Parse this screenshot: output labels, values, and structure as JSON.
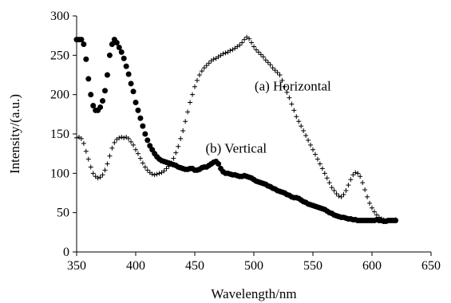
{
  "chart_data": {
    "type": "scatter",
    "xlabel": "Wavelength/nm",
    "ylabel": "Intensity/(a.u.)",
    "xlim": [
      350,
      650
    ],
    "ylim": [
      0,
      300
    ],
    "x_ticks": [
      "350",
      "400",
      "450",
      "500",
      "550",
      "600",
      "650"
    ],
    "y_ticks": [
      "0",
      "50",
      "100",
      "150",
      "200",
      "250",
      "300"
    ],
    "grid": false,
    "legend": "none",
    "annotations": [
      {
        "text": "(a) Horizontal",
        "x": 533,
        "y": 205
      },
      {
        "text": "(b) Vertical",
        "x": 485,
        "y": 126
      }
    ],
    "series": [
      {
        "name": "(a) Horizontal",
        "marker": "plus",
        "color": "#000000",
        "points": [
          [
            350,
            145
          ],
          [
            352,
            146
          ],
          [
            354,
            144
          ],
          [
            356,
            138
          ],
          [
            358,
            128
          ],
          [
            360,
            118
          ],
          [
            362,
            108
          ],
          [
            364,
            100
          ],
          [
            366,
            96
          ],
          [
            368,
            94
          ],
          [
            370,
            95
          ],
          [
            372,
            98
          ],
          [
            374,
            104
          ],
          [
            376,
            112
          ],
          [
            378,
            122
          ],
          [
            380,
            132
          ],
          [
            382,
            139
          ],
          [
            384,
            143
          ],
          [
            386,
            145
          ],
          [
            388,
            146
          ],
          [
            390,
            145
          ],
          [
            392,
            146
          ],
          [
            394,
            144
          ],
          [
            396,
            140
          ],
          [
            398,
            136
          ],
          [
            400,
            130
          ],
          [
            402,
            125
          ],
          [
            404,
            119
          ],
          [
            406,
            113
          ],
          [
            408,
            108
          ],
          [
            410,
            104
          ],
          [
            412,
            101
          ],
          [
            414,
            99
          ],
          [
            416,
            98
          ],
          [
            418,
            99
          ],
          [
            420,
            100
          ],
          [
            422,
            101
          ],
          [
            424,
            103
          ],
          [
            426,
            106
          ],
          [
            428,
            109
          ],
          [
            430,
            113
          ],
          [
            432,
            119
          ],
          [
            434,
            126
          ],
          [
            436,
            134
          ],
          [
            438,
            144
          ],
          [
            440,
            154
          ],
          [
            442,
            166
          ],
          [
            444,
            178
          ],
          [
            446,
            190
          ],
          [
            448,
            200
          ],
          [
            450,
            210
          ],
          [
            452,
            218
          ],
          [
            454,
            225
          ],
          [
            456,
            230
          ],
          [
            458,
            234
          ],
          [
            460,
            237
          ],
          [
            462,
            240
          ],
          [
            464,
            243
          ],
          [
            466,
            245
          ],
          [
            468,
            246
          ],
          [
            470,
            248
          ],
          [
            472,
            250
          ],
          [
            474,
            252
          ],
          [
            476,
            253
          ],
          [
            478,
            254
          ],
          [
            480,
            256
          ],
          [
            482,
            257
          ],
          [
            484,
            259
          ],
          [
            486,
            261
          ],
          [
            488,
            263
          ],
          [
            490,
            266
          ],
          [
            492,
            270
          ],
          [
            494,
            273
          ],
          [
            496,
            271
          ],
          [
            498,
            266
          ],
          [
            500,
            261
          ],
          [
            502,
            257
          ],
          [
            504,
            254
          ],
          [
            506,
            251
          ],
          [
            508,
            248
          ],
          [
            510,
            244
          ],
          [
            512,
            241
          ],
          [
            514,
            238
          ],
          [
            516,
            234
          ],
          [
            518,
            231
          ],
          [
            520,
            228
          ],
          [
            522,
            225
          ],
          [
            524,
            218
          ],
          [
            526,
            210
          ],
          [
            528,
            203
          ],
          [
            530,
            196
          ],
          [
            532,
            188
          ],
          [
            534,
            180
          ],
          [
            536,
            172
          ],
          [
            538,
            166
          ],
          [
            540,
            160
          ],
          [
            542,
            154
          ],
          [
            544,
            148
          ],
          [
            546,
            142
          ],
          [
            548,
            136
          ],
          [
            550,
            130
          ],
          [
            552,
            124
          ],
          [
            554,
            118
          ],
          [
            556,
            112
          ],
          [
            558,
            106
          ],
          [
            560,
            100
          ],
          [
            562,
            94
          ],
          [
            564,
            88
          ],
          [
            566,
            82
          ],
          [
            568,
            78
          ],
          [
            570,
            74
          ],
          [
            572,
            71
          ],
          [
            574,
            70
          ],
          [
            576,
            73
          ],
          [
            578,
            78
          ],
          [
            580,
            85
          ],
          [
            582,
            92
          ],
          [
            584,
            98
          ],
          [
            586,
            101
          ],
          [
            588,
            100
          ],
          [
            590,
            96
          ],
          [
            592,
            88
          ],
          [
            594,
            79
          ],
          [
            596,
            70
          ],
          [
            598,
            62
          ],
          [
            600,
            56
          ],
          [
            602,
            51
          ],
          [
            604,
            47
          ],
          [
            606,
            44
          ],
          [
            608,
            42
          ],
          [
            610,
            41
          ],
          [
            612,
            40
          ],
          [
            614,
            40
          ],
          [
            616,
            40
          ],
          [
            618,
            40
          ],
          [
            620,
            41
          ]
        ]
      },
      {
        "name": "(b) Vertical",
        "marker": "dot",
        "color": "#000000",
        "points": [
          [
            350,
            270
          ],
          [
            352,
            270
          ],
          [
            354,
            270
          ],
          [
            356,
            264
          ],
          [
            358,
            245
          ],
          [
            360,
            220
          ],
          [
            362,
            200
          ],
          [
            364,
            186
          ],
          [
            366,
            180
          ],
          [
            368,
            180
          ],
          [
            370,
            184
          ],
          [
            372,
            192
          ],
          [
            374,
            205
          ],
          [
            376,
            225
          ],
          [
            378,
            250
          ],
          [
            380,
            264
          ],
          [
            382,
            270
          ],
          [
            384,
            266
          ],
          [
            386,
            260
          ],
          [
            388,
            254
          ],
          [
            390,
            246
          ],
          [
            392,
            236
          ],
          [
            394,
            226
          ],
          [
            396,
            214
          ],
          [
            398,
            204
          ],
          [
            400,
            190
          ],
          [
            402,
            180
          ],
          [
            404,
            170
          ],
          [
            406,
            160
          ],
          [
            408,
            150
          ],
          [
            410,
            142
          ],
          [
            412,
            135
          ],
          [
            414,
            130
          ],
          [
            416,
            125
          ],
          [
            418,
            121
          ],
          [
            420,
            118
          ],
          [
            422,
            116
          ],
          [
            424,
            115
          ],
          [
            426,
            114
          ],
          [
            428,
            113
          ],
          [
            430,
            112
          ],
          [
            432,
            111
          ],
          [
            434,
            110
          ],
          [
            436,
            108
          ],
          [
            438,
            107
          ],
          [
            440,
            106
          ],
          [
            442,
            105
          ],
          [
            444,
            105
          ],
          [
            446,
            106
          ],
          [
            448,
            106
          ],
          [
            450,
            104
          ],
          [
            452,
            104
          ],
          [
            454,
            105
          ],
          [
            456,
            107
          ],
          [
            458,
            108
          ],
          [
            460,
            108
          ],
          [
            462,
            110
          ],
          [
            464,
            112
          ],
          [
            466,
            114
          ],
          [
            468,
            115
          ],
          [
            470,
            112
          ],
          [
            472,
            106
          ],
          [
            474,
            102
          ],
          [
            476,
            100
          ],
          [
            478,
            100
          ],
          [
            480,
            99
          ],
          [
            482,
            98
          ],
          [
            484,
            98
          ],
          [
            486,
            97
          ],
          [
            488,
            96
          ],
          [
            490,
            96
          ],
          [
            492,
            97
          ],
          [
            494,
            96
          ],
          [
            496,
            95
          ],
          [
            498,
            94
          ],
          [
            500,
            92
          ],
          [
            502,
            90
          ],
          [
            504,
            89
          ],
          [
            506,
            88
          ],
          [
            508,
            87
          ],
          [
            510,
            86
          ],
          [
            512,
            84
          ],
          [
            514,
            83
          ],
          [
            516,
            81
          ],
          [
            518,
            80
          ],
          [
            520,
            78
          ],
          [
            522,
            77
          ],
          [
            524,
            76
          ],
          [
            526,
            75
          ],
          [
            528,
            73
          ],
          [
            530,
            72
          ],
          [
            532,
            70
          ],
          [
            534,
            69
          ],
          [
            536,
            69
          ],
          [
            538,
            68
          ],
          [
            540,
            66
          ],
          [
            542,
            64
          ],
          [
            544,
            63
          ],
          [
            546,
            61
          ],
          [
            548,
            60
          ],
          [
            550,
            59
          ],
          [
            552,
            58
          ],
          [
            554,
            57
          ],
          [
            556,
            56
          ],
          [
            558,
            55
          ],
          [
            560,
            54
          ],
          [
            562,
            52
          ],
          [
            564,
            50
          ],
          [
            566,
            49
          ],
          [
            568,
            47
          ],
          [
            570,
            46
          ],
          [
            572,
            45
          ],
          [
            574,
            44
          ],
          [
            576,
            44
          ],
          [
            578,
            43
          ],
          [
            580,
            42
          ],
          [
            582,
            42
          ],
          [
            584,
            41
          ],
          [
            586,
            41
          ],
          [
            588,
            40
          ],
          [
            590,
            40
          ],
          [
            592,
            40
          ],
          [
            594,
            40
          ],
          [
            596,
            40
          ],
          [
            598,
            40
          ],
          [
            600,
            40
          ],
          [
            602,
            40
          ],
          [
            604,
            41
          ],
          [
            606,
            40
          ],
          [
            608,
            40
          ],
          [
            610,
            39
          ],
          [
            612,
            39
          ],
          [
            614,
            40
          ],
          [
            616,
            40
          ],
          [
            618,
            40
          ],
          [
            620,
            40
          ]
        ]
      }
    ]
  }
}
